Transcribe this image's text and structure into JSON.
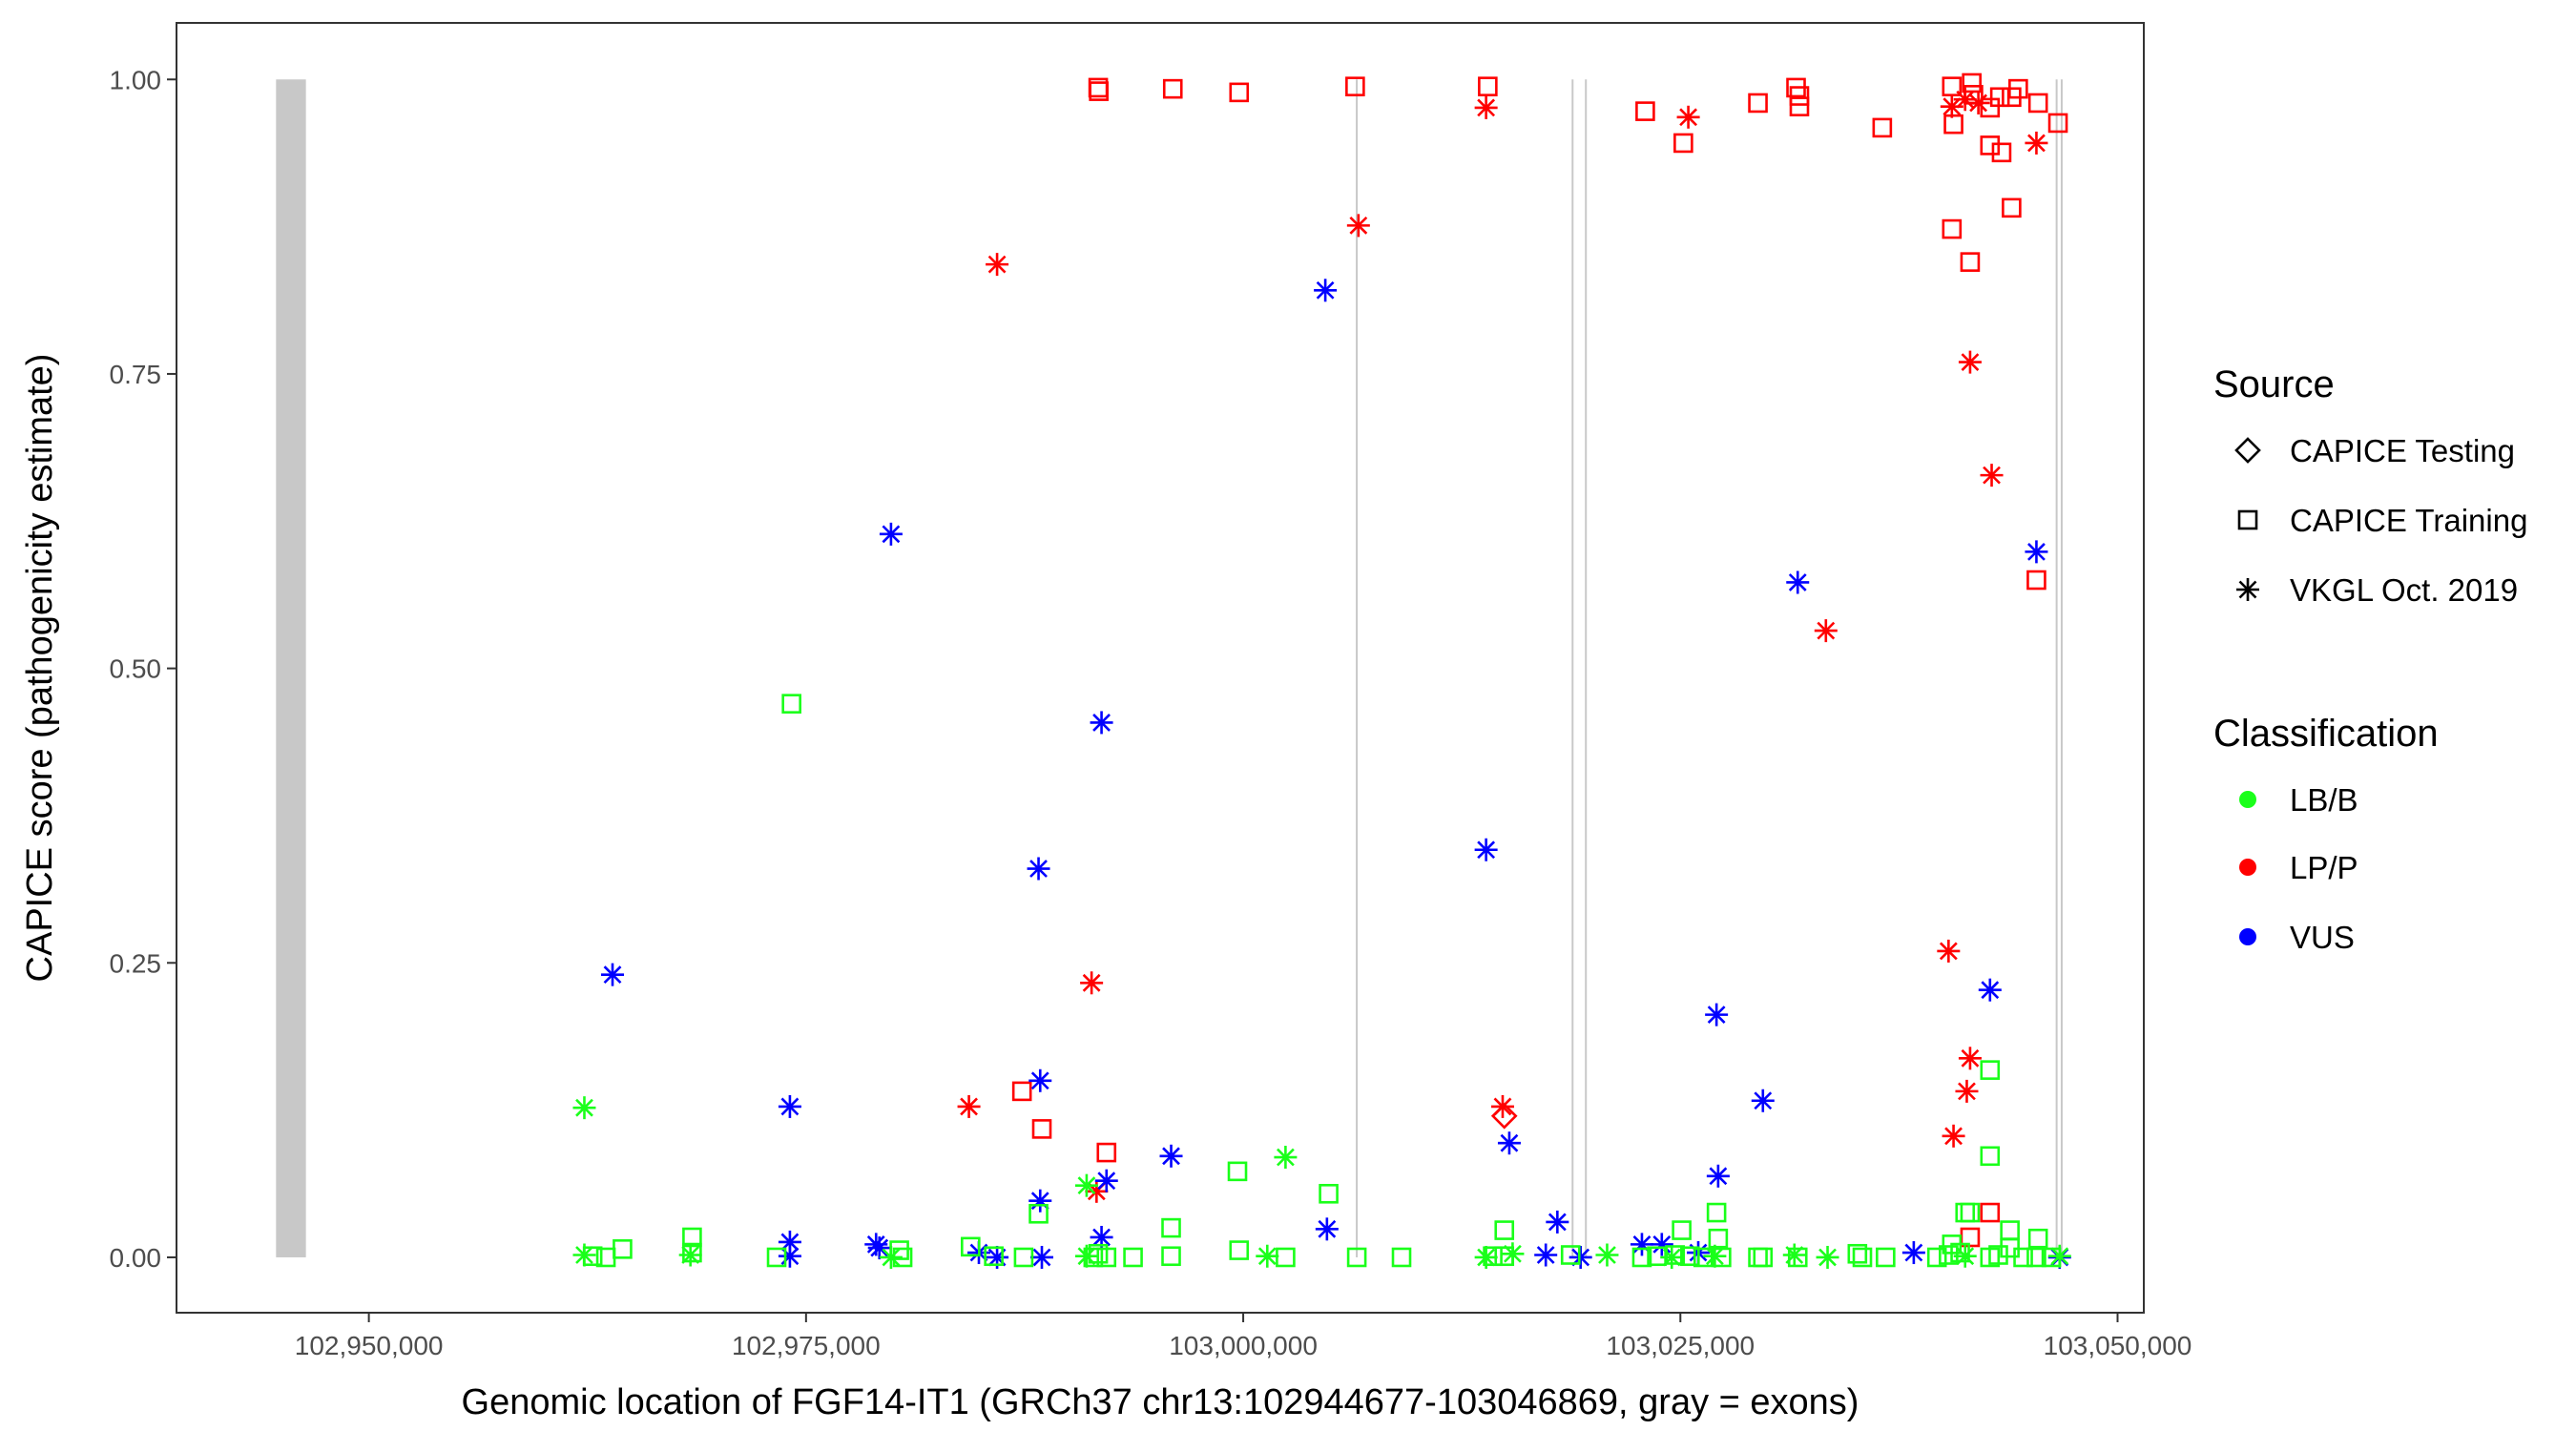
{
  "chart_data": {
    "type": "scatter",
    "xlabel": "Genomic location of FGF14-IT1 (GRCh37 chr13:102944677-103046869, gray = exons)",
    "ylabel": "CAPICE score (pathogenicity estimate)",
    "xlim": [
      102939000,
      103051500
    ],
    "ylim": [
      -0.047,
      1.048
    ],
    "x_ticks": [
      102950000,
      102975000,
      103000000,
      103025000,
      103050000
    ],
    "x_tick_labels": [
      "102,950,000",
      "102,975,000",
      "103,000,000",
      "103,025,000",
      "103,050,000"
    ],
    "y_ticks": [
      0,
      0.25,
      0.5,
      0.75,
      1.0
    ],
    "y_tick_labels": [
      "0.00",
      "0.25",
      "0.50",
      "0.75",
      "1.00"
    ],
    "grid": false,
    "exons": [
      [
        102944692,
        102946400
      ],
      [
        103006440,
        103006540
      ],
      [
        103018780,
        103018860
      ],
      [
        103019540,
        103019620
      ],
      [
        103046460,
        103046540
      ],
      [
        103046750,
        103046820
      ]
    ],
    "exon_color": "#c8c8c8",
    "colors": {
      "LB/B": "#1aff1a",
      "LP/P": "#ff0000",
      "VUS": "#0000ff"
    },
    "legend": {
      "placement": "right",
      "source_title": "Source",
      "source_items": [
        {
          "key": "test",
          "label": "CAPICE Testing",
          "shape": "diamond"
        },
        {
          "key": "train",
          "label": "CAPICE Training",
          "shape": "square"
        },
        {
          "key": "vkgl",
          "label": "VKGL Oct. 2019",
          "shape": "asterisk"
        }
      ],
      "class_title": "Classification",
      "class_items": [
        {
          "key": "LB/B",
          "label": "LB/B"
        },
        {
          "key": "LP/P",
          "label": "LP/P"
        },
        {
          "key": "VUS",
          "label": "VUS"
        }
      ]
    },
    "points": [
      [
        102991708,
        0.993,
        "train",
        "LP/P"
      ],
      [
        102991740,
        0.99,
        "train",
        "LP/P"
      ],
      [
        102995973,
        0.992,
        "train",
        "LP/P"
      ],
      [
        102999765,
        0.989,
        "train",
        "LP/P"
      ],
      [
        103006400,
        0.994,
        "train",
        "LP/P"
      ],
      [
        103013983,
        0.994,
        "train",
        "LP/P"
      ],
      [
        103022988,
        0.973,
        "train",
        "LP/P"
      ],
      [
        103025168,
        0.946,
        "train",
        "LP/P"
      ],
      [
        103029434,
        0.98,
        "train",
        "LP/P"
      ],
      [
        103031614,
        0.993,
        "train",
        "LP/P"
      ],
      [
        103031804,
        0.986,
        "train",
        "LP/P"
      ],
      [
        103031804,
        0.977,
        "train",
        "LP/P"
      ],
      [
        103036543,
        0.959,
        "train",
        "LP/P"
      ],
      [
        103040524,
        0.994,
        "train",
        "LP/P"
      ],
      [
        103040619,
        0.962,
        "train",
        "LP/P"
      ],
      [
        103041662,
        0.997,
        "train",
        "LP/P"
      ],
      [
        103041757,
        0.987,
        "train",
        "LP/P"
      ],
      [
        103042705,
        0.976,
        "train",
        "LP/P"
      ],
      [
        103042705,
        0.944,
        "train",
        "LP/P"
      ],
      [
        103043368,
        0.938,
        "train",
        "LP/P"
      ],
      [
        103043270,
        0.985,
        "train",
        "LP/P"
      ],
      [
        103044317,
        0.992,
        "train",
        "LP/P"
      ],
      [
        103043937,
        0.985,
        "train",
        "LP/P"
      ],
      [
        103045454,
        0.98,
        "train",
        "LP/P"
      ],
      [
        103046592,
        0.963,
        "train",
        "LP/P"
      ],
      [
        103040524,
        0.873,
        "train",
        "LP/P"
      ],
      [
        103041567,
        0.845,
        "train",
        "LP/P"
      ],
      [
        103043937,
        0.891,
        "train",
        "LP/P"
      ],
      [
        103045359,
        0.575,
        "train",
        "LP/P"
      ],
      [
        102987348,
        0.141,
        "train",
        "LP/P"
      ],
      [
        102988485,
        0.109,
        "train",
        "LP/P"
      ],
      [
        102992182,
        0.089,
        "train",
        "LP/P"
      ],
      [
        103041567,
        0.017,
        "train",
        "LP/P"
      ],
      [
        103042705,
        0.038,
        "train",
        "LP/P"
      ],
      [
        103014931,
        0.12,
        "test",
        "LP/P"
      ],
      [
        102985925,
        0.843,
        "vkgl",
        "LP/P"
      ],
      [
        103006590,
        0.876,
        "vkgl",
        "LP/P"
      ],
      [
        103013889,
        0.976,
        "vkgl",
        "LP/P"
      ],
      [
        103025453,
        0.968,
        "vkgl",
        "LP/P"
      ],
      [
        103040524,
        0.977,
        "vkgl",
        "LP/P"
      ],
      [
        103041283,
        0.983,
        "vkgl",
        "LP/P"
      ],
      [
        103042040,
        0.98,
        "vkgl",
        "LP/P"
      ],
      [
        103045359,
        0.946,
        "vkgl",
        "LP/P"
      ],
      [
        103041567,
        0.76,
        "vkgl",
        "LP/P"
      ],
      [
        103042800,
        0.664,
        "vkgl",
        "LP/P"
      ],
      [
        103033321,
        0.532,
        "vkgl",
        "LP/P"
      ],
      [
        102991329,
        0.233,
        "vkgl",
        "LP/P"
      ],
      [
        102984315,
        0.128,
        "vkgl",
        "LP/P"
      ],
      [
        102991613,
        0.056,
        "vkgl",
        "LP/P"
      ],
      [
        103014836,
        0.128,
        "vkgl",
        "LP/P"
      ],
      [
        103040334,
        0.26,
        "vkgl",
        "LP/P"
      ],
      [
        103041567,
        0.169,
        "vkgl",
        "LP/P"
      ],
      [
        103041378,
        0.141,
        "vkgl",
        "LP/P"
      ],
      [
        103040619,
        0.103,
        "vkgl",
        "LP/P"
      ],
      [
        103004695,
        0.821,
        "vkgl",
        "VUS"
      ],
      [
        102979859,
        0.614,
        "vkgl",
        "VUS"
      ],
      [
        102991898,
        0.454,
        "vkgl",
        "VUS"
      ],
      [
        102988296,
        0.33,
        "vkgl",
        "VUS"
      ],
      [
        102963934,
        0.24,
        "vkgl",
        "VUS"
      ],
      [
        102974077,
        0.128,
        "vkgl",
        "VUS"
      ],
      [
        102988390,
        0.15,
        "vkgl",
        "VUS"
      ],
      [
        102988390,
        0.048,
        "vkgl",
        "VUS"
      ],
      [
        102992182,
        0.065,
        "vkgl",
        "VUS"
      ],
      [
        102995878,
        0.086,
        "vkgl",
        "VUS"
      ],
      [
        102991898,
        0.017,
        "vkgl",
        "VUS"
      ],
      [
        103013889,
        0.346,
        "vkgl",
        "VUS"
      ],
      [
        103015216,
        0.097,
        "vkgl",
        "VUS"
      ],
      [
        103017965,
        0.03,
        "vkgl",
        "VUS"
      ],
      [
        103031709,
        0.573,
        "vkgl",
        "VUS"
      ],
      [
        103027065,
        0.206,
        "vkgl",
        "VUS"
      ],
      [
        103029719,
        0.133,
        "vkgl",
        "VUS"
      ],
      [
        103027160,
        0.069,
        "vkgl",
        "VUS"
      ],
      [
        103042705,
        0.227,
        "vkgl",
        "VUS"
      ],
      [
        103045359,
        0.599,
        "vkgl",
        "VUS"
      ],
      [
        103004789,
        0.024,
        "vkgl",
        "VUS"
      ],
      [
        102974077,
        0.013,
        "vkgl",
        "VUS"
      ],
      [
        102974077,
        0.001,
        "vkgl",
        "VUS"
      ],
      [
        102979005,
        0.011,
        "vkgl",
        "VUS"
      ],
      [
        102979195,
        0.008,
        "vkgl",
        "VUS"
      ],
      [
        102984884,
        0.004,
        "vkgl",
        "VUS"
      ],
      [
        102985925,
        0.0,
        "vkgl",
        "VUS"
      ],
      [
        102988485,
        0.0,
        "vkgl",
        "VUS"
      ],
      [
        103017302,
        0.002,
        "vkgl",
        "VUS"
      ],
      [
        103019293,
        0.0,
        "vkgl",
        "VUS"
      ],
      [
        103022800,
        0.011,
        "vkgl",
        "VUS"
      ],
      [
        103023937,
        0.011,
        "vkgl",
        "VUS"
      ],
      [
        103026022,
        0.004,
        "vkgl",
        "VUS"
      ],
      [
        103038345,
        0.004,
        "vkgl",
        "VUS"
      ],
      [
        103046687,
        0.0,
        "vkgl",
        "VUS"
      ],
      [
        102974172,
        0.47,
        "train",
        "LB/B"
      ],
      [
        102999670,
        0.073,
        "train",
        "LB/B"
      ],
      [
        103004884,
        0.054,
        "train",
        "LB/B"
      ],
      [
        102995878,
        0.025,
        "train",
        "LB/B"
      ],
      [
        102988296,
        0.037,
        "train",
        "LB/B"
      ],
      [
        103042705,
        0.086,
        "train",
        "LB/B"
      ],
      [
        103042705,
        0.159,
        "train",
        "LB/B"
      ],
      [
        103027065,
        0.038,
        "train",
        "LB/B"
      ],
      [
        103014931,
        0.023,
        "train",
        "LB/B"
      ],
      [
        103041283,
        0.038,
        "train",
        "LB/B"
      ],
      [
        103041567,
        0.038,
        "train",
        "LB/B"
      ],
      [
        103043842,
        0.023,
        "train",
        "LB/B"
      ],
      [
        103027160,
        0.016,
        "train",
        "LB/B"
      ],
      [
        102968484,
        0.017,
        "train",
        "LB/B"
      ],
      [
        103025073,
        0.023,
        "train",
        "LB/B"
      ],
      [
        103045454,
        0.016,
        "train",
        "LB/B"
      ],
      [
        103040524,
        0.011,
        "train",
        "LB/B"
      ],
      [
        102962323,
        0.127,
        "vkgl",
        "LB/B"
      ],
      [
        103002419,
        0.085,
        "vkgl",
        "LB/B"
      ],
      [
        102991045,
        0.061,
        "vkgl",
        "LB/B"
      ],
      [
        102962323,
        0.002,
        "vkgl",
        "LB/B"
      ],
      [
        102962797,
        0.001,
        "train",
        "LB/B"
      ],
      [
        102963555,
        0.0,
        "train",
        "LB/B"
      ],
      [
        102964503,
        0.007,
        "train",
        "LB/B"
      ],
      [
        102968390,
        0.002,
        "vkgl",
        "LB/B"
      ],
      [
        102968484,
        0.004,
        "train",
        "LB/B"
      ],
      [
        102973319,
        0.0,
        "train",
        "LB/B"
      ],
      [
        102979859,
        0.0,
        "vkgl",
        "LB/B"
      ],
      [
        102980333,
        0.006,
        "train",
        "LB/B"
      ],
      [
        102980523,
        0.0,
        "train",
        "LB/B"
      ],
      [
        102984410,
        0.009,
        "train",
        "LB/B"
      ],
      [
        102985737,
        0.001,
        "train",
        "LB/B"
      ],
      [
        102987443,
        0.0,
        "train",
        "LB/B"
      ],
      [
        102991045,
        0.001,
        "vkgl",
        "LB/B"
      ],
      [
        102991424,
        0.0,
        "train",
        "LB/B"
      ],
      [
        102991708,
        0.003,
        "train",
        "LB/B"
      ],
      [
        102992182,
        0.0,
        "train",
        "LB/B"
      ],
      [
        102993699,
        0.0,
        "train",
        "LB/B"
      ],
      [
        102995878,
        0.001,
        "train",
        "LB/B"
      ],
      [
        102999765,
        0.006,
        "train",
        "LB/B"
      ],
      [
        103001376,
        0.001,
        "vkgl",
        "LB/B"
      ],
      [
        103002419,
        0.0,
        "train",
        "LB/B"
      ],
      [
        103006495,
        0.0,
        "train",
        "LB/B"
      ],
      [
        103009054,
        0.0,
        "train",
        "LB/B"
      ],
      [
        103013889,
        0.0,
        "vkgl",
        "LB/B"
      ],
      [
        103014268,
        0.001,
        "train",
        "LB/B"
      ],
      [
        103014931,
        0.001,
        "train",
        "LB/B"
      ],
      [
        103015405,
        0.003,
        "vkgl",
        "LB/B"
      ],
      [
        103018723,
        0.002,
        "train",
        "LB/B"
      ],
      [
        103020809,
        0.002,
        "vkgl",
        "LB/B"
      ],
      [
        103022800,
        0.0,
        "train",
        "LB/B"
      ],
      [
        103023653,
        0.001,
        "train",
        "LB/B"
      ],
      [
        103024506,
        0.0,
        "vkgl",
        "LB/B"
      ],
      [
        103024696,
        0.002,
        "train",
        "LB/B"
      ],
      [
        103025548,
        0.001,
        "train",
        "LB/B"
      ],
      [
        103026307,
        0.0,
        "train",
        "LB/B"
      ],
      [
        103026970,
        0.001,
        "vkgl",
        "LB/B"
      ],
      [
        103027350,
        0.0,
        "train",
        "LB/B"
      ],
      [
        103029434,
        0.0,
        "train",
        "LB/B"
      ],
      [
        103029719,
        0.0,
        "train",
        "LB/B"
      ],
      [
        103031519,
        0.002,
        "vkgl",
        "LB/B"
      ],
      [
        103031709,
        0.0,
        "train",
        "LB/B"
      ],
      [
        103033416,
        0.0,
        "vkgl",
        "LB/B"
      ],
      [
        103035122,
        0.003,
        "train",
        "LB/B"
      ],
      [
        103035406,
        0.0,
        "train",
        "LB/B"
      ],
      [
        103036733,
        0.0,
        "train",
        "LB/B"
      ],
      [
        103039672,
        0.0,
        "train",
        "LB/B"
      ],
      [
        103040334,
        0.002,
        "train",
        "LB/B"
      ],
      [
        103041000,
        0.004,
        "train",
        "LB/B"
      ],
      [
        103041283,
        0.001,
        "vkgl",
        "LB/B"
      ],
      [
        103042705,
        0.0,
        "train",
        "LB/B"
      ],
      [
        103043179,
        0.002,
        "train",
        "LB/B"
      ],
      [
        103043842,
        0.008,
        "train",
        "LB/B"
      ],
      [
        103044601,
        0.0,
        "train",
        "LB/B"
      ],
      [
        103045359,
        0.0,
        "train",
        "LB/B"
      ],
      [
        103046212,
        0.0,
        "train",
        "LB/B"
      ],
      [
        103046687,
        0.001,
        "vkgl",
        "LB/B"
      ]
    ]
  }
}
